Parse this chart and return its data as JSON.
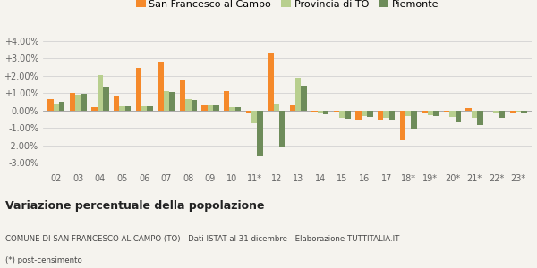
{
  "categories": [
    "02",
    "03",
    "04",
    "05",
    "06",
    "07",
    "08",
    "09",
    "10",
    "11*",
    "12",
    "13",
    "14",
    "15",
    "16",
    "17",
    "18*",
    "19*",
    "20*",
    "21*",
    "22*",
    "23*"
  ],
  "san_francesco": [
    0.65,
    1.02,
    0.18,
    0.88,
    2.45,
    2.82,
    1.78,
    0.32,
    1.1,
    -0.18,
    3.3,
    0.3,
    -0.05,
    -0.05,
    -0.55,
    -0.55,
    -1.7,
    -0.1,
    -0.05,
    0.15,
    0.0,
    -0.12
  ],
  "provincia_to": [
    0.38,
    0.93,
    2.05,
    0.25,
    0.25,
    1.1,
    0.65,
    0.28,
    0.2,
    -0.72,
    0.4,
    1.9,
    -0.18,
    -0.42,
    -0.32,
    -0.42,
    -0.32,
    -0.28,
    -0.38,
    -0.42,
    -0.18,
    -0.08
  ],
  "piemonte": [
    0.52,
    0.95,
    1.38,
    0.22,
    0.22,
    1.05,
    0.58,
    0.3,
    0.2,
    -2.62,
    -2.12,
    1.42,
    -0.2,
    -0.48,
    -0.38,
    -0.52,
    -1.05,
    -0.32,
    -0.68,
    -0.85,
    -0.42,
    -0.1
  ],
  "color_sf": "#f5892a",
  "color_prov": "#b8cf8e",
  "color_piem": "#6e8c5a",
  "ylim_min": -3.5,
  "ylim_max": 4.5,
  "yticks": [
    -3.0,
    -2.0,
    -1.0,
    0.0,
    1.0,
    2.0,
    3.0,
    4.0
  ],
  "title": "Variazione percentuale della popolazione",
  "subtitle": "COMUNE DI SAN FRANCESCO AL CAMPO (TO) - Dati ISTAT al 31 dicembre - Elaborazione TUTTITALIA.IT",
  "footnote": "(*) post-censimento",
  "legend_labels": [
    "San Francesco al Campo",
    "Provincia di TO",
    "Piemonte"
  ],
  "bg_color": "#f5f3ee",
  "bar_width": 0.26
}
